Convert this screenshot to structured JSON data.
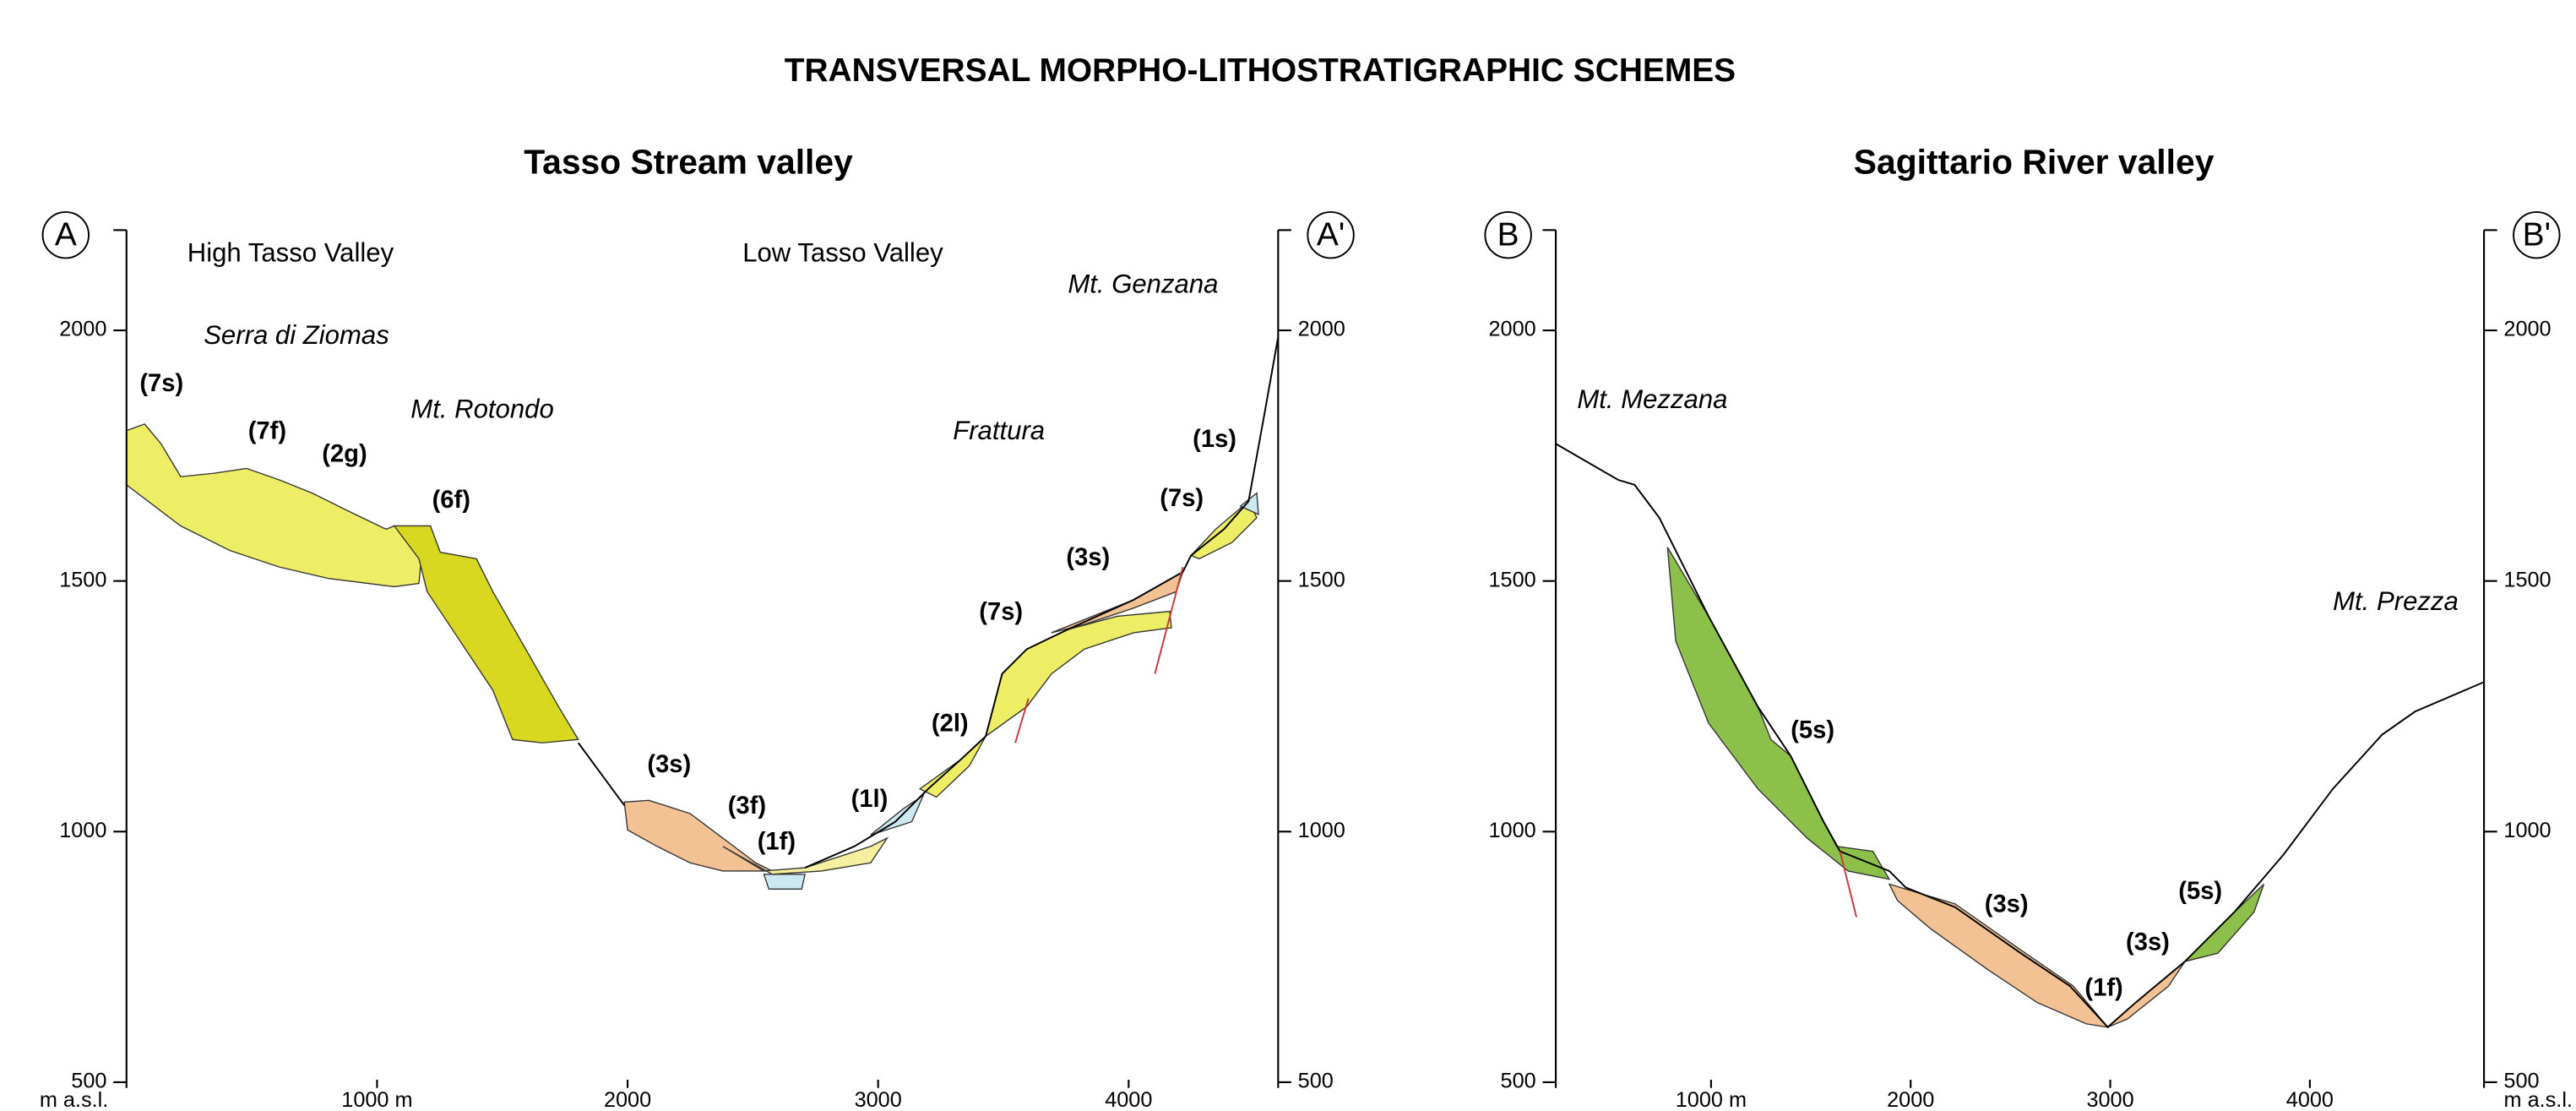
{
  "title": "TRANSVERSAL MORPHO-LITHOSTRATIGRAPHIC SCHEMES",
  "panels": [
    {
      "title": "Tasso Stream valley",
      "start": "A",
      "end": "A'",
      "places": [
        "High Tasso Valley",
        "Low Tasso Valley",
        "Serra di Ziomas",
        "Mt. Rotondo",
        "Frattura",
        "Mt. Genzana"
      ],
      "units": [
        "(7s)",
        "(7f)",
        "(2g)",
        "(6f)",
        "(3s)",
        "(3f)",
        "(1f)",
        "(1l)",
        "(2l)",
        "(7s)",
        "(3s)",
        "(7s)",
        "(1s)"
      ],
      "yticks": [
        500,
        1000,
        1500,
        2000
      ],
      "xticks": [
        {
          "value": 1000,
          "label": "1000 m"
        },
        2000,
        3000,
        4000
      ],
      "y_unit": "m a.s.l."
    },
    {
      "title": "Sagittario River valley",
      "start": "B",
      "end": "B'",
      "places": [
        "Mt. Mezzana",
        "Mt. Prezza"
      ],
      "units": [
        "(5s)",
        "(3s)",
        "(1f)",
        "(3s)",
        "(5s)"
      ],
      "yticks": [
        500,
        1000,
        1500,
        2000
      ],
      "xticks": [
        {
          "value": 1000,
          "label": "1000 m"
        },
        2000,
        3000,
        4000
      ],
      "y_unit": "m a.s.l."
    }
  ]
}
